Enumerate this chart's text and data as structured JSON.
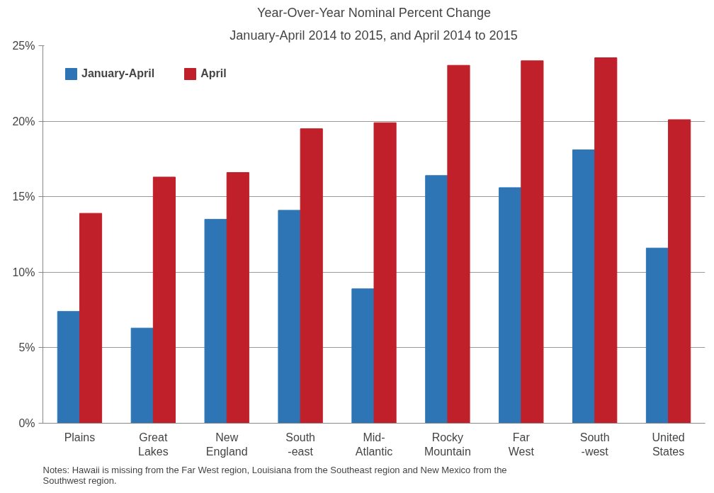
{
  "chart_data": {
    "type": "bar",
    "title": "Year-Over-Year Nominal Percent Change",
    "subtitle": "January-April 2014 to 2015, and April 2014 to 2015",
    "categories": [
      "Plains",
      "Great\nLakes",
      "New\nEngland",
      "South\n-east",
      "Mid-\nAtlantic",
      "Rocky\nMountain",
      "Far\nWest",
      "South\n-west",
      "United\nStates"
    ],
    "series": [
      {
        "name": "January-April",
        "color": "#2e75b6",
        "values": [
          7.4,
          6.3,
          13.5,
          14.1,
          8.9,
          16.4,
          15.6,
          18.1,
          11.6
        ]
      },
      {
        "name": "April",
        "color": "#c0202a",
        "values": [
          13.9,
          16.3,
          16.6,
          19.5,
          19.9,
          23.7,
          24.0,
          24.2,
          20.1
        ]
      }
    ],
    "ylim": [
      0,
      25
    ],
    "yticks": [
      {
        "value": 0,
        "label": "0%"
      },
      {
        "value": 5,
        "label": "5%"
      },
      {
        "value": 10,
        "label": "10%"
      },
      {
        "value": 15,
        "label": "15%"
      },
      {
        "value": 20,
        "label": "20%"
      },
      {
        "value": 25,
        "label": "25%"
      }
    ],
    "grid": "y",
    "legend": "top left",
    "annotations": [
      "Notes: Hawaii is missing from the Far West region, Louisiana from the Southeast region and New Mexico from the Southwest region."
    ]
  }
}
